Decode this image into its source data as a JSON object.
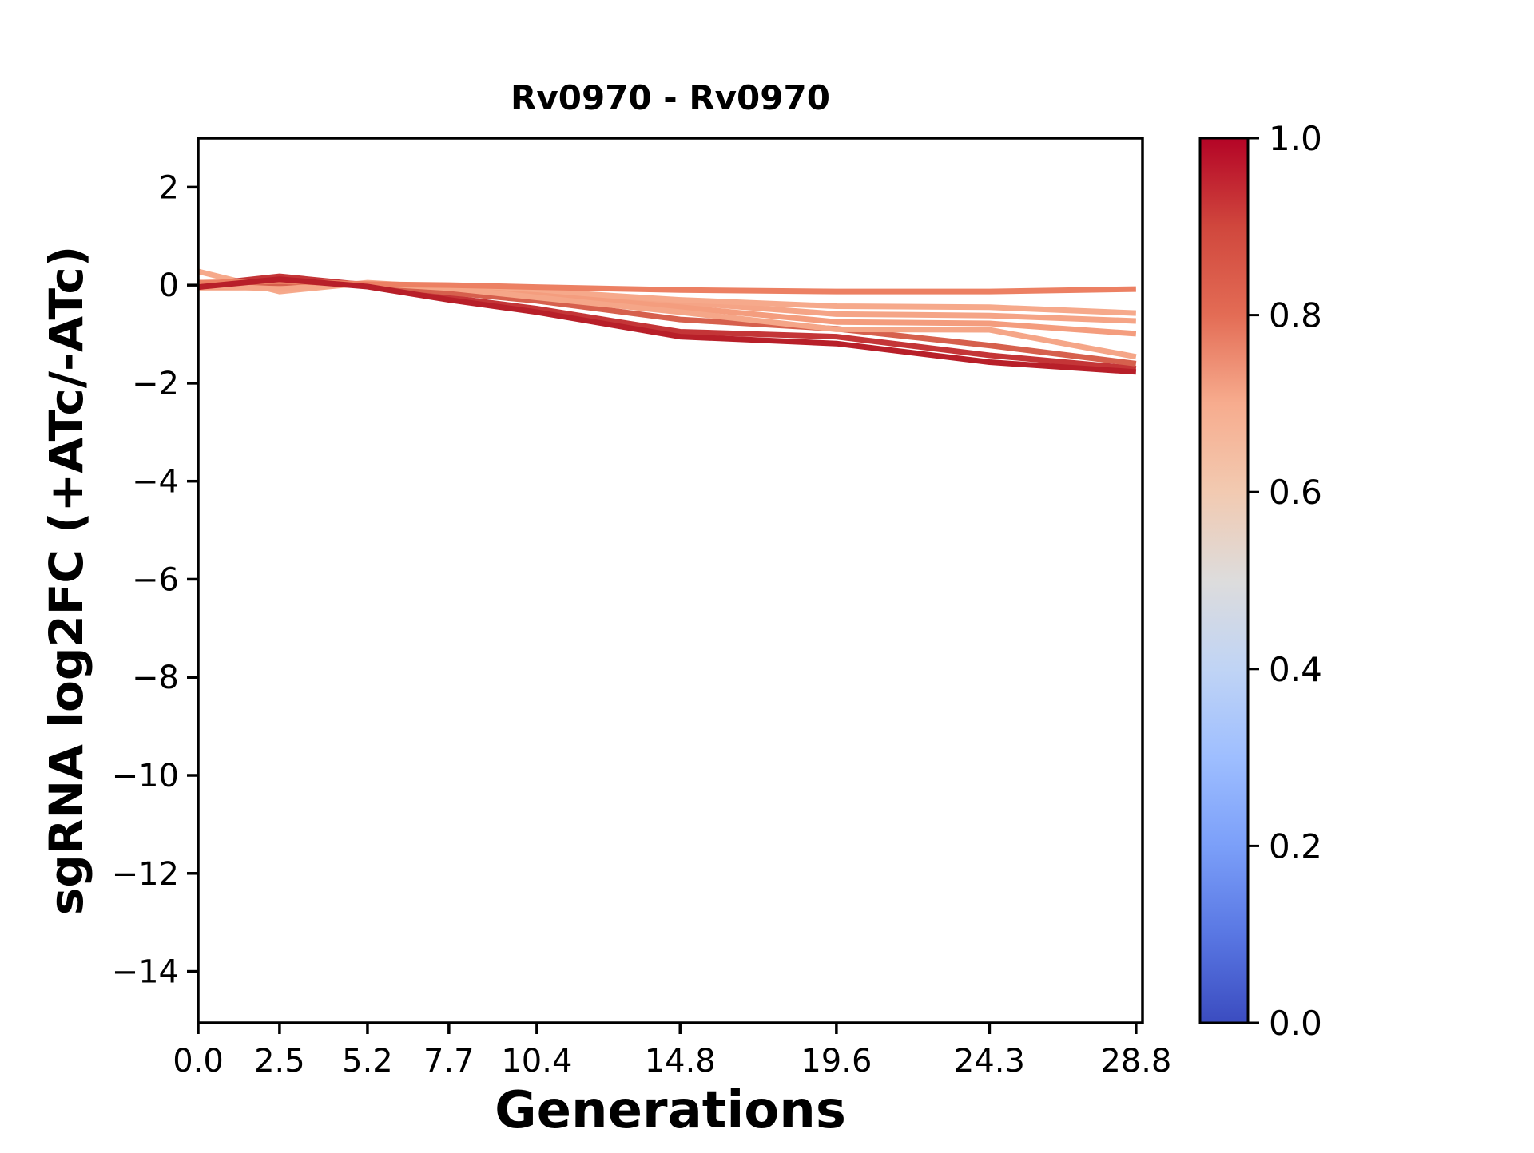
{
  "figure": {
    "background_color": "#ffffff",
    "text_color": "#000000"
  },
  "chart_data": {
    "type": "line",
    "title": "Rv0970 - Rv0970",
    "xlabel": "Generations",
    "ylabel": "sgRNA log2FC (+ATc/-ATc)",
    "grid": false,
    "legend": "none",
    "xlim": [
      0,
      29
    ],
    "ylim": [
      -15.05,
      3.0
    ],
    "x": [
      0.0,
      2.5,
      5.2,
      7.7,
      10.4,
      14.8,
      19.6,
      24.3,
      28.8
    ],
    "xtick_labels": [
      "0.0",
      "2.5",
      "5.2",
      "7.7",
      "10.4",
      "14.8",
      "19.6",
      "24.3",
      "28.8"
    ],
    "yticks": [
      2,
      0,
      -2,
      -4,
      -6,
      -8,
      -10,
      -12,
      -14
    ],
    "ytick_labels": [
      "2",
      "0",
      "−2",
      "−4",
      "−6",
      "−8",
      "−10",
      "−12",
      "−14"
    ],
    "series": [
      {
        "cmap_value": 0.69,
        "color": "#f5a486",
        "values": [
          0.03,
          0.02,
          0.0,
          -0.08,
          -0.16,
          -0.35,
          -0.59,
          -0.62,
          -0.73
        ]
      },
      {
        "cmap_value": 0.67,
        "color": "#f6a98b",
        "values": [
          0.28,
          -0.13,
          0.05,
          -0.05,
          -0.12,
          -0.3,
          -0.43,
          -0.45,
          -0.57
        ]
      },
      {
        "cmap_value": 0.71,
        "color": "#f49d7e",
        "values": [
          -0.05,
          -0.05,
          0.03,
          -0.1,
          -0.2,
          -0.45,
          -0.75,
          -0.78,
          -0.99
        ]
      },
      {
        "cmap_value": 0.94,
        "color": "#c43537",
        "values": [
          0.0,
          0.18,
          0.0,
          -0.25,
          -0.48,
          -0.95,
          -1.05,
          -1.43,
          -1.7
        ]
      },
      {
        "cmap_value": 0.86,
        "color": "#d6604d",
        "values": [
          0.05,
          0.04,
          0.02,
          -0.15,
          -0.32,
          -0.7,
          -0.89,
          -1.23,
          -1.6
        ]
      },
      {
        "cmap_value": 0.68,
        "color": "#f5a688",
        "values": [
          0.0,
          -0.08,
          0.04,
          -0.06,
          -0.25,
          -0.55,
          -0.9,
          -0.91,
          -1.46
        ]
      },
      {
        "cmap_value": 0.78,
        "color": "#ec8063",
        "values": [
          0.05,
          0.08,
          0.02,
          0.0,
          -0.04,
          -0.1,
          -0.13,
          -0.13,
          -0.08
        ]
      },
      {
        "cmap_value": 0.99,
        "color": "#b81f29",
        "values": [
          -0.04,
          0.12,
          -0.03,
          -0.3,
          -0.55,
          -1.05,
          -1.19,
          -1.57,
          -1.77
        ]
      }
    ],
    "colorbar": {
      "orientation": "vertical",
      "position": "right",
      "tick_values": [
        0.0,
        0.2,
        0.4,
        0.6,
        0.8,
        1.0
      ],
      "tick_labels": [
        "0.0",
        "0.2",
        "0.4",
        "0.6",
        "0.8",
        "1.0"
      ],
      "colormap": "coolwarm",
      "gradient_stops": [
        {
          "t": 0.0,
          "color": "#3b4cc0"
        },
        {
          "t": 0.1,
          "color": "#5977e3"
        },
        {
          "t": 0.2,
          "color": "#7b9ff9"
        },
        {
          "t": 0.3,
          "color": "#9ebeff"
        },
        {
          "t": 0.4,
          "color": "#c0d4f5"
        },
        {
          "t": 0.5,
          "color": "#dddcdc"
        },
        {
          "t": 0.6,
          "color": "#f2cab1"
        },
        {
          "t": 0.7,
          "color": "#f7ac8e"
        },
        {
          "t": 0.8,
          "color": "#e36c55"
        },
        {
          "t": 0.9,
          "color": "#d0473d"
        },
        {
          "t": 1.0,
          "color": "#b40426"
        }
      ]
    }
  }
}
